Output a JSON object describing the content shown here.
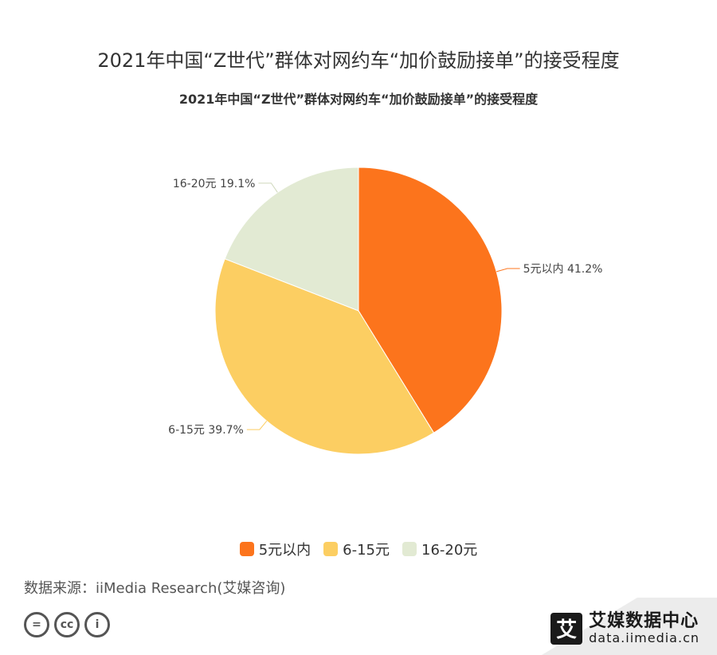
{
  "page_title": "2021年中国“Z世代”群体对网约车“加价鼓励接单”的接受程度",
  "source": "数据来源：iiMedia Research(艾媒咨询)",
  "brand": {
    "logo_char": "艾",
    "name": "艾媒数据中心",
    "url": "data.iimedia.cn"
  },
  "cc_icons": [
    "=",
    "cc",
    "i"
  ],
  "colors": {
    "slice1": "#fc741c",
    "slice2": "#fcce62",
    "slice3": "#e2ead3",
    "band": "#ececec"
  },
  "chart_data": {
    "type": "pie",
    "title": "2021年中国“Z世代”群体对网约车“加价鼓励接单”的接受程度",
    "slices": [
      {
        "label": "5元以内",
        "value": 41.2,
        "display": "5元以内 41.2%"
      },
      {
        "label": "6-15元",
        "value": 39.7,
        "display": "6-15元 39.7%"
      },
      {
        "label": "16-20元",
        "value": 19.1,
        "display": "16-20元 19.1%"
      }
    ],
    "legend": {
      "position": "bottom"
    }
  }
}
